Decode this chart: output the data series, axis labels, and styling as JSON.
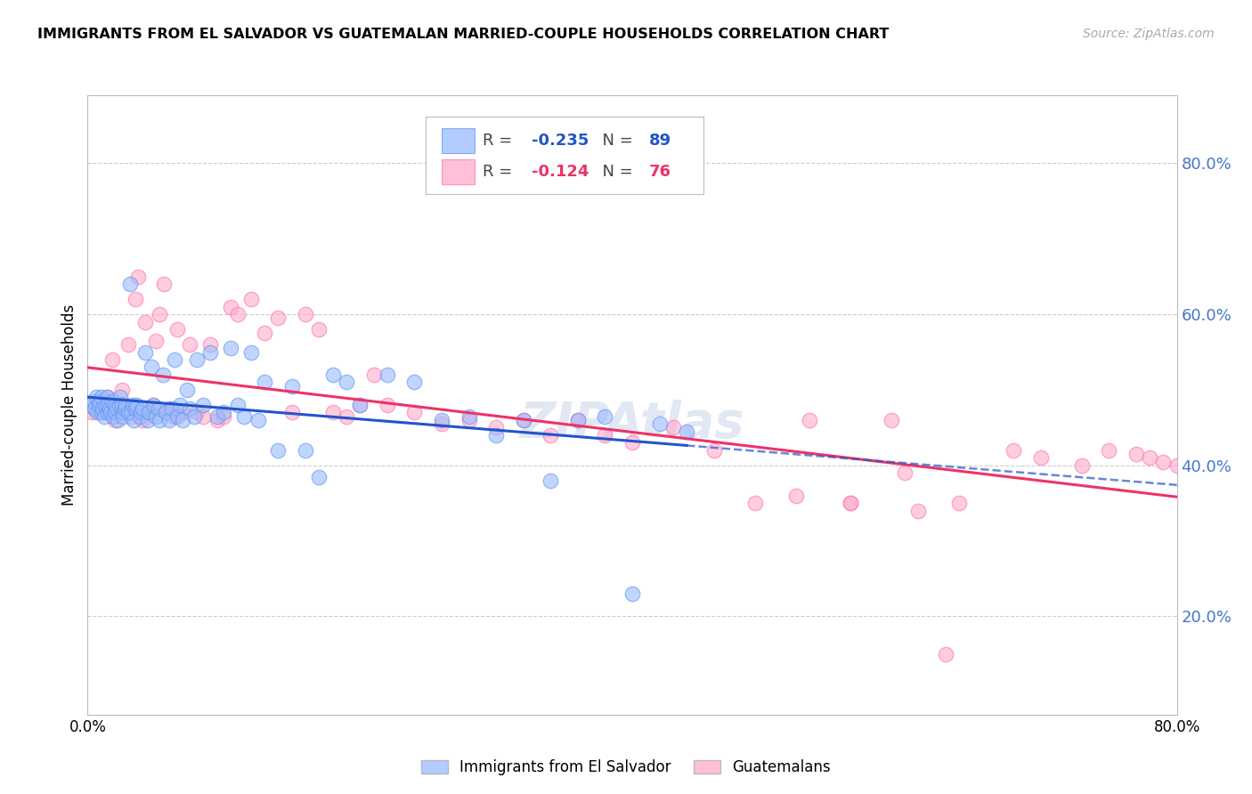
{
  "title": "IMMIGRANTS FROM EL SALVADOR VS GUATEMALAN MARRIED-COUPLE HOUSEHOLDS CORRELATION CHART",
  "source": "Source: ZipAtlas.com",
  "ylabel": "Married-couple Households",
  "legend_blue_label": "Immigrants from El Salvador",
  "legend_pink_label": "Guatemalans",
  "blue_r": "-0.235",
  "blue_n": "89",
  "pink_r": "-0.124",
  "pink_n": "76",
  "blue_fill": "#99BBFF",
  "blue_edge": "#6699EE",
  "pink_fill": "#FFAACC",
  "pink_edge": "#FF77AA",
  "trend_blue_color": "#2255CC",
  "trend_pink_color": "#EE3366",
  "right_axis_color": "#4477CC",
  "xmin": 0.0,
  "xmax": 0.8,
  "ymin": 0.07,
  "ymax": 0.89,
  "right_yticks": [
    0.2,
    0.4,
    0.6,
    0.8
  ],
  "right_yticklabels": [
    "20.0%",
    "40.0%",
    "60.0%",
    "80.0%"
  ],
  "xticks": [
    0.0,
    0.1,
    0.2,
    0.3,
    0.4,
    0.5,
    0.6,
    0.7,
    0.8
  ],
  "xticklabels": [
    "0.0%",
    "",
    "",
    "",
    "",
    "",
    "",
    "",
    "80.0%"
  ],
  "blue_x": [
    0.003,
    0.004,
    0.005,
    0.006,
    0.007,
    0.008,
    0.009,
    0.01,
    0.01,
    0.011,
    0.012,
    0.013,
    0.014,
    0.015,
    0.015,
    0.016,
    0.017,
    0.018,
    0.019,
    0.02,
    0.02,
    0.021,
    0.022,
    0.023,
    0.024,
    0.025,
    0.025,
    0.026,
    0.027,
    0.028,
    0.03,
    0.031,
    0.032,
    0.033,
    0.034,
    0.035,
    0.036,
    0.038,
    0.039,
    0.04,
    0.042,
    0.044,
    0.045,
    0.047,
    0.048,
    0.05,
    0.052,
    0.053,
    0.055,
    0.057,
    0.06,
    0.062,
    0.064,
    0.066,
    0.068,
    0.07,
    0.073,
    0.075,
    0.078,
    0.08,
    0.085,
    0.09,
    0.095,
    0.1,
    0.105,
    0.11,
    0.115,
    0.12,
    0.125,
    0.13,
    0.14,
    0.15,
    0.16,
    0.17,
    0.18,
    0.19,
    0.2,
    0.22,
    0.24,
    0.26,
    0.28,
    0.3,
    0.32,
    0.34,
    0.36,
    0.38,
    0.4,
    0.42,
    0.44
  ],
  "blue_y": [
    0.48,
    0.485,
    0.475,
    0.49,
    0.47,
    0.48,
    0.485,
    0.47,
    0.49,
    0.475,
    0.465,
    0.48,
    0.49,
    0.47,
    0.48,
    0.475,
    0.47,
    0.485,
    0.465,
    0.48,
    0.47,
    0.475,
    0.46,
    0.48,
    0.49,
    0.47,
    0.48,
    0.465,
    0.475,
    0.48,
    0.47,
    0.64,
    0.47,
    0.48,
    0.46,
    0.475,
    0.48,
    0.465,
    0.47,
    0.475,
    0.55,
    0.46,
    0.47,
    0.53,
    0.48,
    0.465,
    0.475,
    0.46,
    0.52,
    0.47,
    0.46,
    0.475,
    0.54,
    0.465,
    0.48,
    0.46,
    0.5,
    0.475,
    0.465,
    0.54,
    0.48,
    0.55,
    0.465,
    0.47,
    0.555,
    0.48,
    0.465,
    0.55,
    0.46,
    0.51,
    0.42,
    0.505,
    0.42,
    0.385,
    0.52,
    0.51,
    0.48,
    0.52,
    0.51,
    0.46,
    0.465,
    0.44,
    0.46,
    0.38,
    0.46,
    0.465,
    0.23,
    0.455,
    0.445
  ],
  "pink_x": [
    0.003,
    0.005,
    0.007,
    0.008,
    0.01,
    0.012,
    0.015,
    0.017,
    0.018,
    0.02,
    0.022,
    0.025,
    0.027,
    0.03,
    0.032,
    0.035,
    0.037,
    0.04,
    0.042,
    0.045,
    0.048,
    0.05,
    0.053,
    0.056,
    0.06,
    0.063,
    0.066,
    0.07,
    0.075,
    0.08,
    0.085,
    0.09,
    0.095,
    0.1,
    0.105,
    0.11,
    0.12,
    0.13,
    0.14,
    0.15,
    0.16,
    0.17,
    0.18,
    0.19,
    0.2,
    0.21,
    0.22,
    0.24,
    0.26,
    0.28,
    0.3,
    0.32,
    0.34,
    0.36,
    0.38,
    0.4,
    0.43,
    0.46,
    0.49,
    0.52,
    0.56,
    0.6,
    0.64,
    0.68,
    0.7,
    0.73,
    0.75,
    0.77,
    0.78,
    0.79,
    0.8,
    0.53,
    0.56,
    0.59,
    0.61,
    0.63
  ],
  "pink_y": [
    0.47,
    0.475,
    0.48,
    0.47,
    0.48,
    0.47,
    0.49,
    0.48,
    0.54,
    0.46,
    0.48,
    0.5,
    0.47,
    0.56,
    0.465,
    0.62,
    0.65,
    0.46,
    0.59,
    0.47,
    0.48,
    0.565,
    0.6,
    0.64,
    0.475,
    0.465,
    0.58,
    0.47,
    0.56,
    0.47,
    0.465,
    0.56,
    0.46,
    0.465,
    0.61,
    0.6,
    0.62,
    0.575,
    0.595,
    0.47,
    0.6,
    0.58,
    0.47,
    0.465,
    0.48,
    0.52,
    0.48,
    0.47,
    0.455,
    0.46,
    0.45,
    0.46,
    0.44,
    0.46,
    0.44,
    0.43,
    0.45,
    0.42,
    0.35,
    0.36,
    0.35,
    0.39,
    0.35,
    0.42,
    0.41,
    0.4,
    0.42,
    0.415,
    0.41,
    0.405,
    0.4,
    0.46,
    0.35,
    0.46,
    0.34,
    0.15
  ]
}
